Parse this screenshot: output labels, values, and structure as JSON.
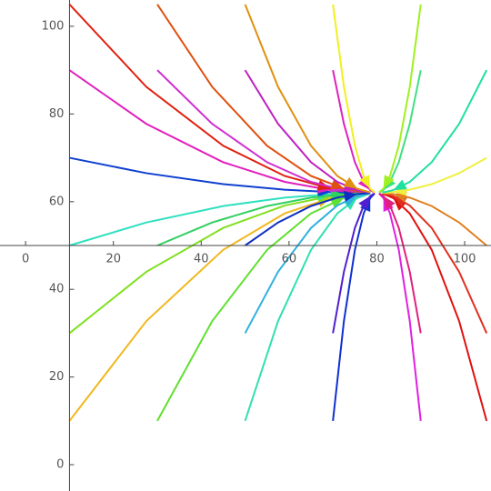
{
  "chart_data": {
    "type": "streamplot",
    "xlim": [
      -5,
      106
    ],
    "ylim": [
      -6,
      106
    ],
    "xticks": [
      0,
      20,
      40,
      60,
      80,
      100
    ],
    "yticks": [
      0,
      20,
      40,
      60,
      80,
      100
    ],
    "axis_origin": [
      10,
      50
    ],
    "series": [
      {
        "color": "#f0b820",
        "x": [
          10,
          27.5,
          45,
          59,
          69.5,
          76.5
        ],
        "values": [
          10,
          32.75,
          49,
          57.32,
          60.83,
          61.87
        ]
      },
      {
        "color": "#80e020",
        "x": [
          10,
          27.5,
          45,
          59,
          69.5,
          76.5
        ],
        "values": [
          30,
          44,
          54,
          59.12,
          61.28,
          61.92
        ]
      },
      {
        "color": "#30e0c0",
        "x": [
          10,
          27.5,
          45,
          59,
          69.5,
          76.5
        ],
        "values": [
          50,
          55.25,
          59,
          60.92,
          61.73,
          61.97
        ]
      },
      {
        "color": "#1040d0",
        "x": [
          10,
          27.5,
          45,
          59,
          69.5,
          76.5
        ],
        "values": [
          70,
          66.5,
          64,
          62.72,
          62.18,
          62.02
        ]
      },
      {
        "color": "#e020c0",
        "x": [
          10,
          27.5,
          45,
          59,
          69.5,
          76.5
        ],
        "values": [
          90,
          77.75,
          69,
          64.52,
          62.63,
          62.07
        ]
      },
      {
        "color": "#e02010",
        "x": [
          10,
          27.5,
          45,
          59,
          69.5,
          76.5
        ],
        "values": [
          105,
          86.19,
          72.75,
          65.87,
          62.97,
          62.11
        ]
      },
      {
        "color": "#60e030",
        "x": [
          30,
          42.5,
          55,
          65,
          72.5,
          77.5
        ],
        "values": [
          10,
          32.75,
          49,
          57.32,
          60.83,
          61.87
        ]
      },
      {
        "color": "#30d060",
        "x": [
          30,
          42.5,
          55,
          65,
          72.5,
          77.5
        ],
        "values": [
          50,
          55.25,
          59,
          60.92,
          61.73,
          61.97
        ]
      },
      {
        "color": "#d030d0",
        "x": [
          30,
          42.5,
          55,
          65,
          72.5,
          77.5
        ],
        "values": [
          90,
          77.75,
          69,
          64.52,
          62.63,
          62.07
        ]
      },
      {
        "color": "#e05010",
        "x": [
          30,
          42.5,
          55,
          65,
          72.5,
          77.5
        ],
        "values": [
          105,
          86.19,
          72.75,
          65.87,
          62.97,
          62.11
        ]
      },
      {
        "color": "#30e0b0",
        "x": [
          50,
          57.5,
          65,
          71,
          75.5,
          78.5
        ],
        "values": [
          10,
          32.75,
          49,
          57.32,
          60.83,
          61.87
        ]
      },
      {
        "color": "#30b0e0",
        "x": [
          50,
          57.5,
          65,
          71,
          75.5,
          78.5
        ],
        "values": [
          30,
          44,
          54,
          59.12,
          61.28,
          61.92
        ]
      },
      {
        "color": "#1030c0",
        "x": [
          50,
          57.5,
          65,
          71,
          75.5,
          78.5
        ],
        "values": [
          50,
          55.25,
          59,
          60.92,
          61.73,
          61.97
        ]
      },
      {
        "color": "#c020c0",
        "x": [
          50,
          57.5,
          65,
          71,
          75.5,
          78.5
        ],
        "values": [
          90,
          77.75,
          69,
          64.52,
          62.63,
          62.07
        ]
      },
      {
        "color": "#e09010",
        "x": [
          50,
          57.5,
          65,
          71,
          75.5,
          78.5
        ],
        "values": [
          105,
          86.19,
          72.75,
          65.87,
          62.97,
          62.11
        ]
      },
      {
        "color": "#1030d0",
        "x": [
          70,
          72.5,
          75,
          77,
          78.5,
          79.5
        ],
        "values": [
          10,
          32.75,
          49,
          57.32,
          60.83,
          61.87
        ]
      },
      {
        "color": "#5020d0",
        "x": [
          70,
          72.5,
          75,
          77,
          78.5,
          79.5
        ],
        "values": [
          30,
          44,
          54,
          59.12,
          61.28,
          61.92
        ]
      },
      {
        "color": "#e020c0",
        "x": [
          70,
          72.5,
          75,
          77,
          78.5,
          79.5
        ],
        "values": [
          90,
          77.75,
          69,
          64.52,
          62.63,
          62.07
        ]
      },
      {
        "color": "#f0f020",
        "x": [
          70,
          72.5,
          75,
          77,
          78.5,
          79.5
        ],
        "values": [
          105,
          86.19,
          72.75,
          65.87,
          62.97,
          62.11
        ]
      },
      {
        "color": "#e020e0",
        "x": [
          90,
          87.5,
          85,
          83,
          81.5,
          80.5
        ],
        "values": [
          10,
          32.75,
          49,
          57.32,
          60.83,
          61.87
        ]
      },
      {
        "color": "#e02080",
        "x": [
          90,
          87.5,
          85,
          83,
          81.5,
          80.5
        ],
        "values": [
          30,
          44,
          54,
          59.12,
          61.28,
          61.92
        ]
      },
      {
        "color": "#40e080",
        "x": [
          90,
          87.5,
          85,
          83,
          81.5,
          80.5
        ],
        "values": [
          90,
          77.75,
          69,
          64.52,
          62.63,
          62.07
        ]
      },
      {
        "color": "#a0f020",
        "x": [
          90,
          87.5,
          85,
          83,
          81.5,
          80.5
        ],
        "values": [
          105,
          86.19,
          72.75,
          65.87,
          62.97,
          62.11
        ]
      },
      {
        "color": "#e01010",
        "x": [
          105,
          98.75,
          92.5,
          87.5,
          83.75,
          81.25
        ],
        "values": [
          10,
          32.75,
          49,
          57.32,
          60.83,
          61.87
        ]
      },
      {
        "color": "#e03020",
        "x": [
          105,
          98.75,
          92.5,
          87.5,
          83.75,
          81.25
        ],
        "values": [
          30,
          44,
          54,
          59.12,
          61.28,
          61.92
        ]
      },
      {
        "color": "#e08020",
        "x": [
          105,
          98.75,
          92.5,
          87.5,
          83.75,
          81.25
        ],
        "values": [
          50,
          55.25,
          59,
          60.92,
          61.73,
          61.97
        ]
      },
      {
        "color": "#f0f040",
        "x": [
          105,
          98.75,
          92.5,
          87.5,
          83.75,
          81.25
        ],
        "values": [
          70,
          66.5,
          64,
          62.72,
          62.18,
          62.02
        ]
      },
      {
        "color": "#20e0a0",
        "x": [
          105,
          98.75,
          92.5,
          87.5,
          83.75,
          81.25
        ],
        "values": [
          90,
          77.75,
          69,
          64.52,
          62.63,
          62.07
        ]
      }
    ]
  }
}
